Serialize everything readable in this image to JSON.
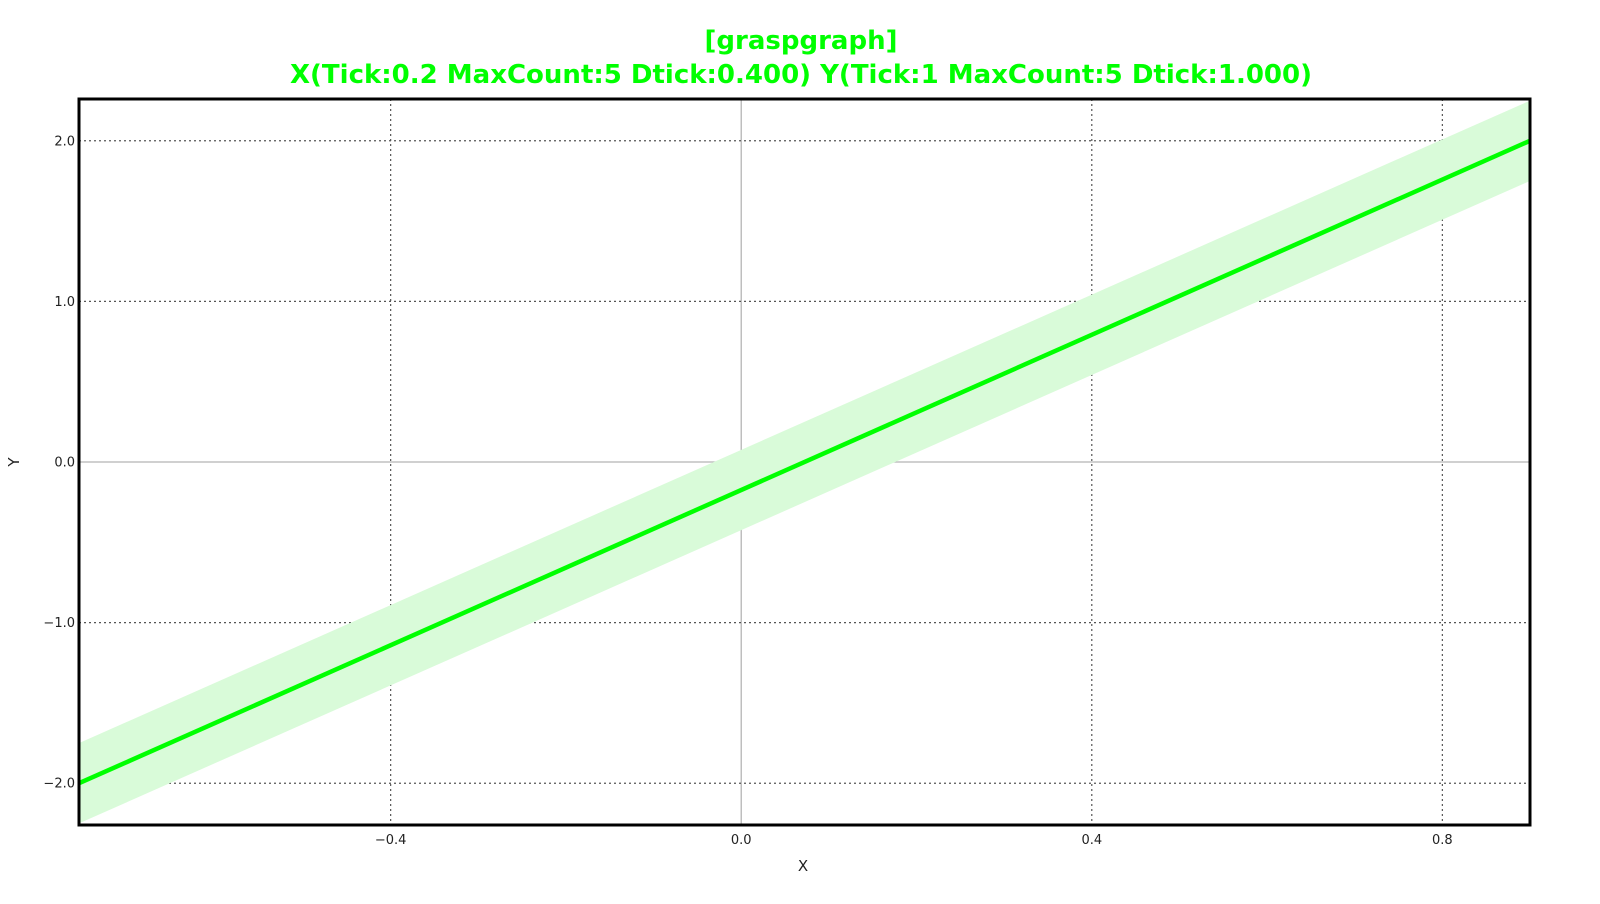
{
  "chart_data": {
    "type": "line",
    "title": "[graspgraph]",
    "subtitle": "X(Tick:0.2 MaxCount:5 Dtick:0.400) Y(Tick:1 MaxCount:5 Dtick:1.000)",
    "xlabel": "X",
    "ylabel": "Y",
    "xlim": [
      -0.7556,
      0.9
    ],
    "ylim": [
      -2.26,
      2.26
    ],
    "x_ticks": [
      -0.4,
      0.0,
      0.4,
      0.8
    ],
    "x_tick_labels": [
      "−0.4",
      "0.0",
      "0.4",
      "0.8"
    ],
    "y_ticks": [
      -2.0,
      -1.0,
      0.0,
      1.0,
      2.0
    ],
    "y_tick_labels": [
      "−2.0",
      "−1.0",
      "0.0",
      "1.0",
      "2.0"
    ],
    "grid": true,
    "series": [
      {
        "x": [
          -0.7556,
          0.9
        ],
        "y": [
          -2.0,
          2.0
        ],
        "band": 0.25,
        "color": "#00ff00",
        "band_color": "#d9fbd9"
      }
    ],
    "colors": {
      "accent": "#00ff00",
      "band": "#d9fbd9",
      "grid": "#555555",
      "zero_line": "#b5b5b5",
      "frame": "#000000"
    }
  }
}
